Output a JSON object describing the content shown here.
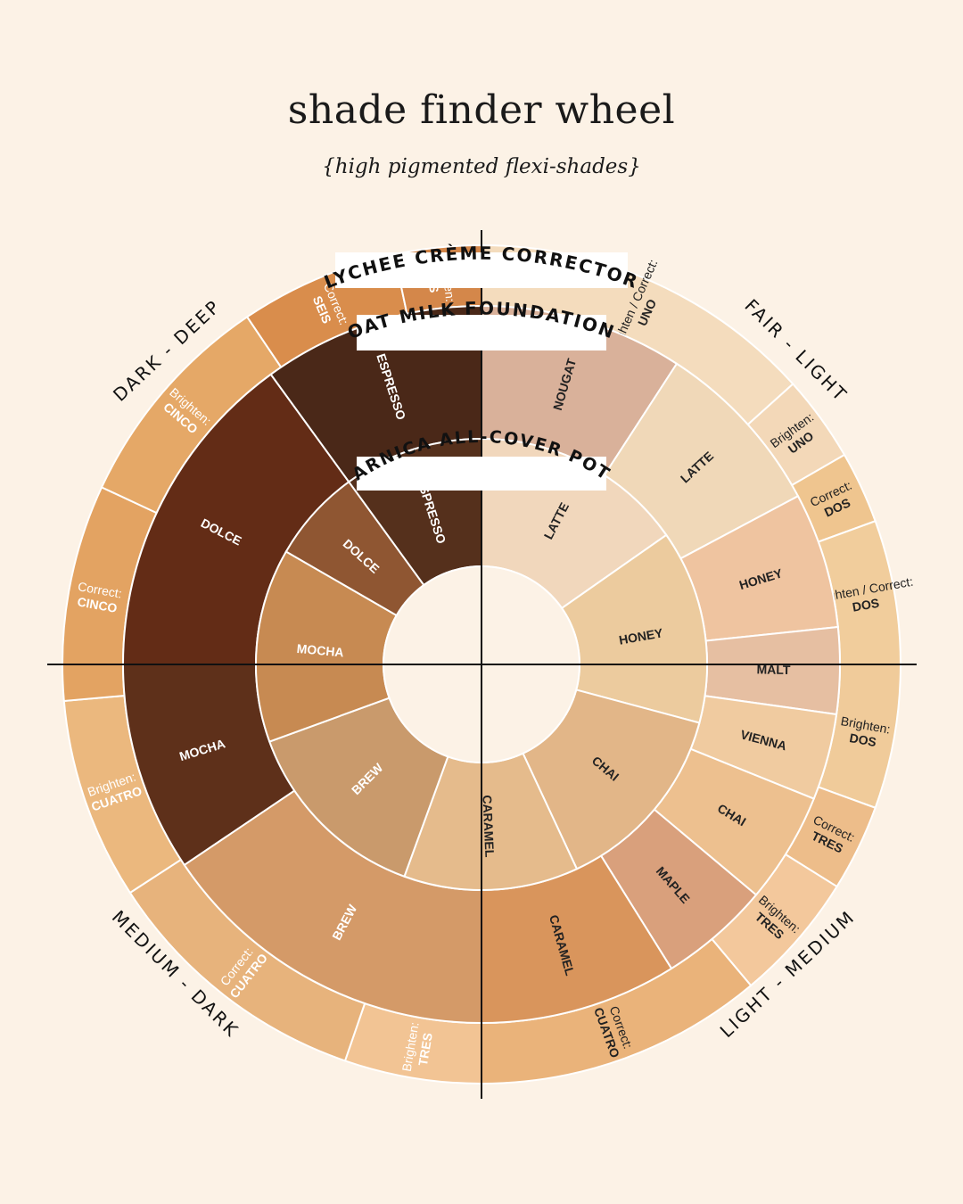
{
  "header": {
    "title": "shade finder wheel",
    "subtitle": "{high pigmented flexi-shades}"
  },
  "ring_titles": {
    "outer": "LYCHEE CRÈME CORRECTOR",
    "middle": "OAT MILK FOUNDATION",
    "inner": "ARNICA ALL-COVER POT"
  },
  "quadrants": {
    "top_left": "DARK - DEEP",
    "top_right": "FAIR - LIGHT",
    "bottom_right": "LIGHT - MEDIUM",
    "bottom_left": "MEDIUM - DARK"
  },
  "outer_ring": [
    {
      "line1": "Brighten / Correct:",
      "line2": "UNO",
      "color": "#f4dcbd",
      "text": "#222222"
    },
    {
      "line1": "Brighten:",
      "line2": "UNO",
      "color": "#f3d8b8",
      "text": "#222222"
    },
    {
      "line1": "Correct:",
      "line2": "DOS",
      "color": "#efc58f",
      "text": "#222222"
    },
    {
      "line1": "Brighten / Correct:",
      "line2": "DOS",
      "color": "#f1cd9c",
      "text": "#222222"
    },
    {
      "line1": "Brighten:",
      "line2": "DOS",
      "color": "#f0cb9a",
      "text": "#222222"
    },
    {
      "line1": "Correct:",
      "line2": "TRES",
      "color": "#edbd8a",
      "text": "#222222"
    },
    {
      "line1": "Brighten:",
      "line2": "TRES",
      "color": "#f3c89c",
      "text": "#222222"
    },
    {
      "line1": "Correct:",
      "line2": "CUATRO",
      "color": "#eab37a",
      "text": "#222222"
    },
    {
      "line1": "Brighten:",
      "line2": "TRES",
      "color": "#f2c494",
      "text": "#ffffff"
    },
    {
      "line1": "Correct:",
      "line2": "CUATRO",
      "color": "#e7b37c",
      "text": "#ffffff"
    },
    {
      "line1": "Brighten:",
      "line2": "CUATRO",
      "color": "#ebb87e",
      "text": "#ffffff"
    },
    {
      "line1": "Correct:",
      "line2": "CINCO",
      "color": "#e3a362",
      "text": "#ffffff"
    },
    {
      "line1": "Brighten:",
      "line2": "CINCO",
      "color": "#e5a867",
      "text": "#ffffff"
    },
    {
      "line1": "Correct:",
      "line2": "SEIS",
      "color": "#d98d4c",
      "text": "#ffffff"
    },
    {
      "line1": "Brighten:",
      "line2": "SEIS",
      "color": "#d4874a",
      "text": "#ffffff"
    }
  ],
  "middle_ring": [
    {
      "label": "NOUGAT",
      "color": "#d9b19a",
      "text": "#222222"
    },
    {
      "label": "LATTE",
      "color": "#f0d8b8",
      "text": "#222222"
    },
    {
      "label": "HONEY",
      "color": "#efc4a0",
      "text": "#222222"
    },
    {
      "label": "MALT",
      "color": "#e6bfa2",
      "text": "#222222"
    },
    {
      "label": "VIENNA",
      "color": "#f0cba0",
      "text": "#222222"
    },
    {
      "label": "CHAI",
      "color": "#edc08f",
      "text": "#222222"
    },
    {
      "label": "MAPLE",
      "color": "#d9a07c",
      "text": "#222222"
    },
    {
      "label": "CARAMEL",
      "color": "#d9955c",
      "text": "#222222"
    },
    {
      "label": "BREW",
      "color": "#d49a68",
      "text": "#ffffff"
    },
    {
      "label": "MOCHA",
      "color": "#5e301a",
      "text": "#ffffff"
    },
    {
      "label": "DOLCE",
      "color": "#632c16",
      "text": "#ffffff"
    },
    {
      "label": "ESPRESSO",
      "color": "#4a2818",
      "text": "#ffffff"
    }
  ],
  "inner_ring": [
    {
      "label": "LATTE",
      "color": "#f1d7bc",
      "text": "#222222"
    },
    {
      "label": "HONEY",
      "color": "#eccb9e",
      "text": "#222222"
    },
    {
      "label": "CHAI",
      "color": "#e2b688",
      "text": "#222222"
    },
    {
      "label": "CARAMEL",
      "color": "#e5bb8c",
      "text": "#222222"
    },
    {
      "label": "BREW",
      "color": "#c99a6c",
      "text": "#ffffff"
    },
    {
      "label": "MOCHA",
      "color": "#c78a52",
      "text": "#ffffff"
    },
    {
      "label": "DOLCE",
      "color": "#8f5632",
      "text": "#ffffff"
    },
    {
      "label": "ESPRESSO",
      "color": "#55301c",
      "text": "#ffffff"
    }
  ]
}
